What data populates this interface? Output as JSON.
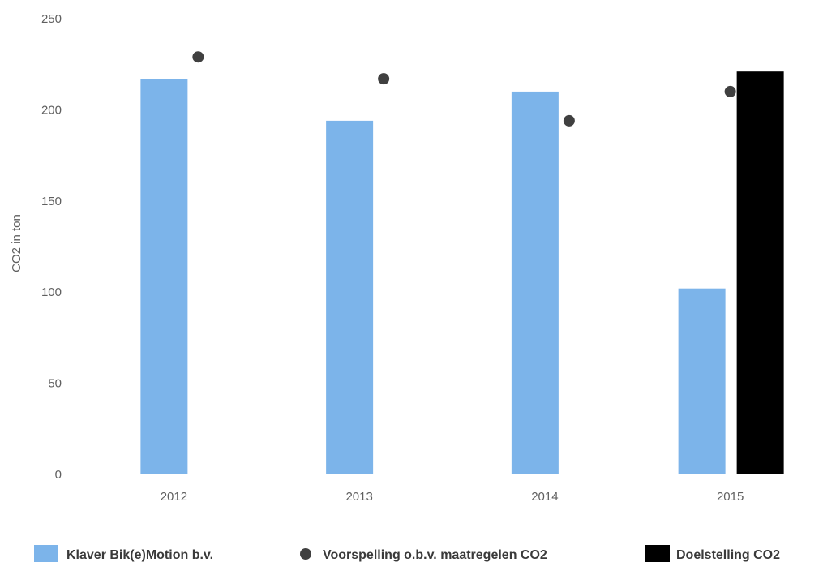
{
  "chart_data": {
    "type": "bar",
    "categories": [
      "2012",
      "2013",
      "2014",
      "2015"
    ],
    "ylabel": "CO2 in ton",
    "ylim": [
      0,
      250
    ],
    "yticks": [
      "0",
      "50",
      "100",
      "150",
      "200",
      "250"
    ],
    "grid": false,
    "legend_position": "bottom",
    "series": [
      {
        "name": "Klaver Bik(e)Motion b.v.",
        "kind": "bar",
        "color": "#7cb4ea",
        "values": [
          217,
          194,
          210,
          102
        ]
      },
      {
        "name": "Voorspelling o.b.v. maatregelen CO2",
        "kind": "point",
        "color": "#404040",
        "values": [
          229,
          217,
          194,
          210
        ]
      },
      {
        "name": "Doelstelling CO2",
        "kind": "bar",
        "color": "#000000",
        "values": [
          null,
          null,
          null,
          221
        ]
      }
    ]
  }
}
